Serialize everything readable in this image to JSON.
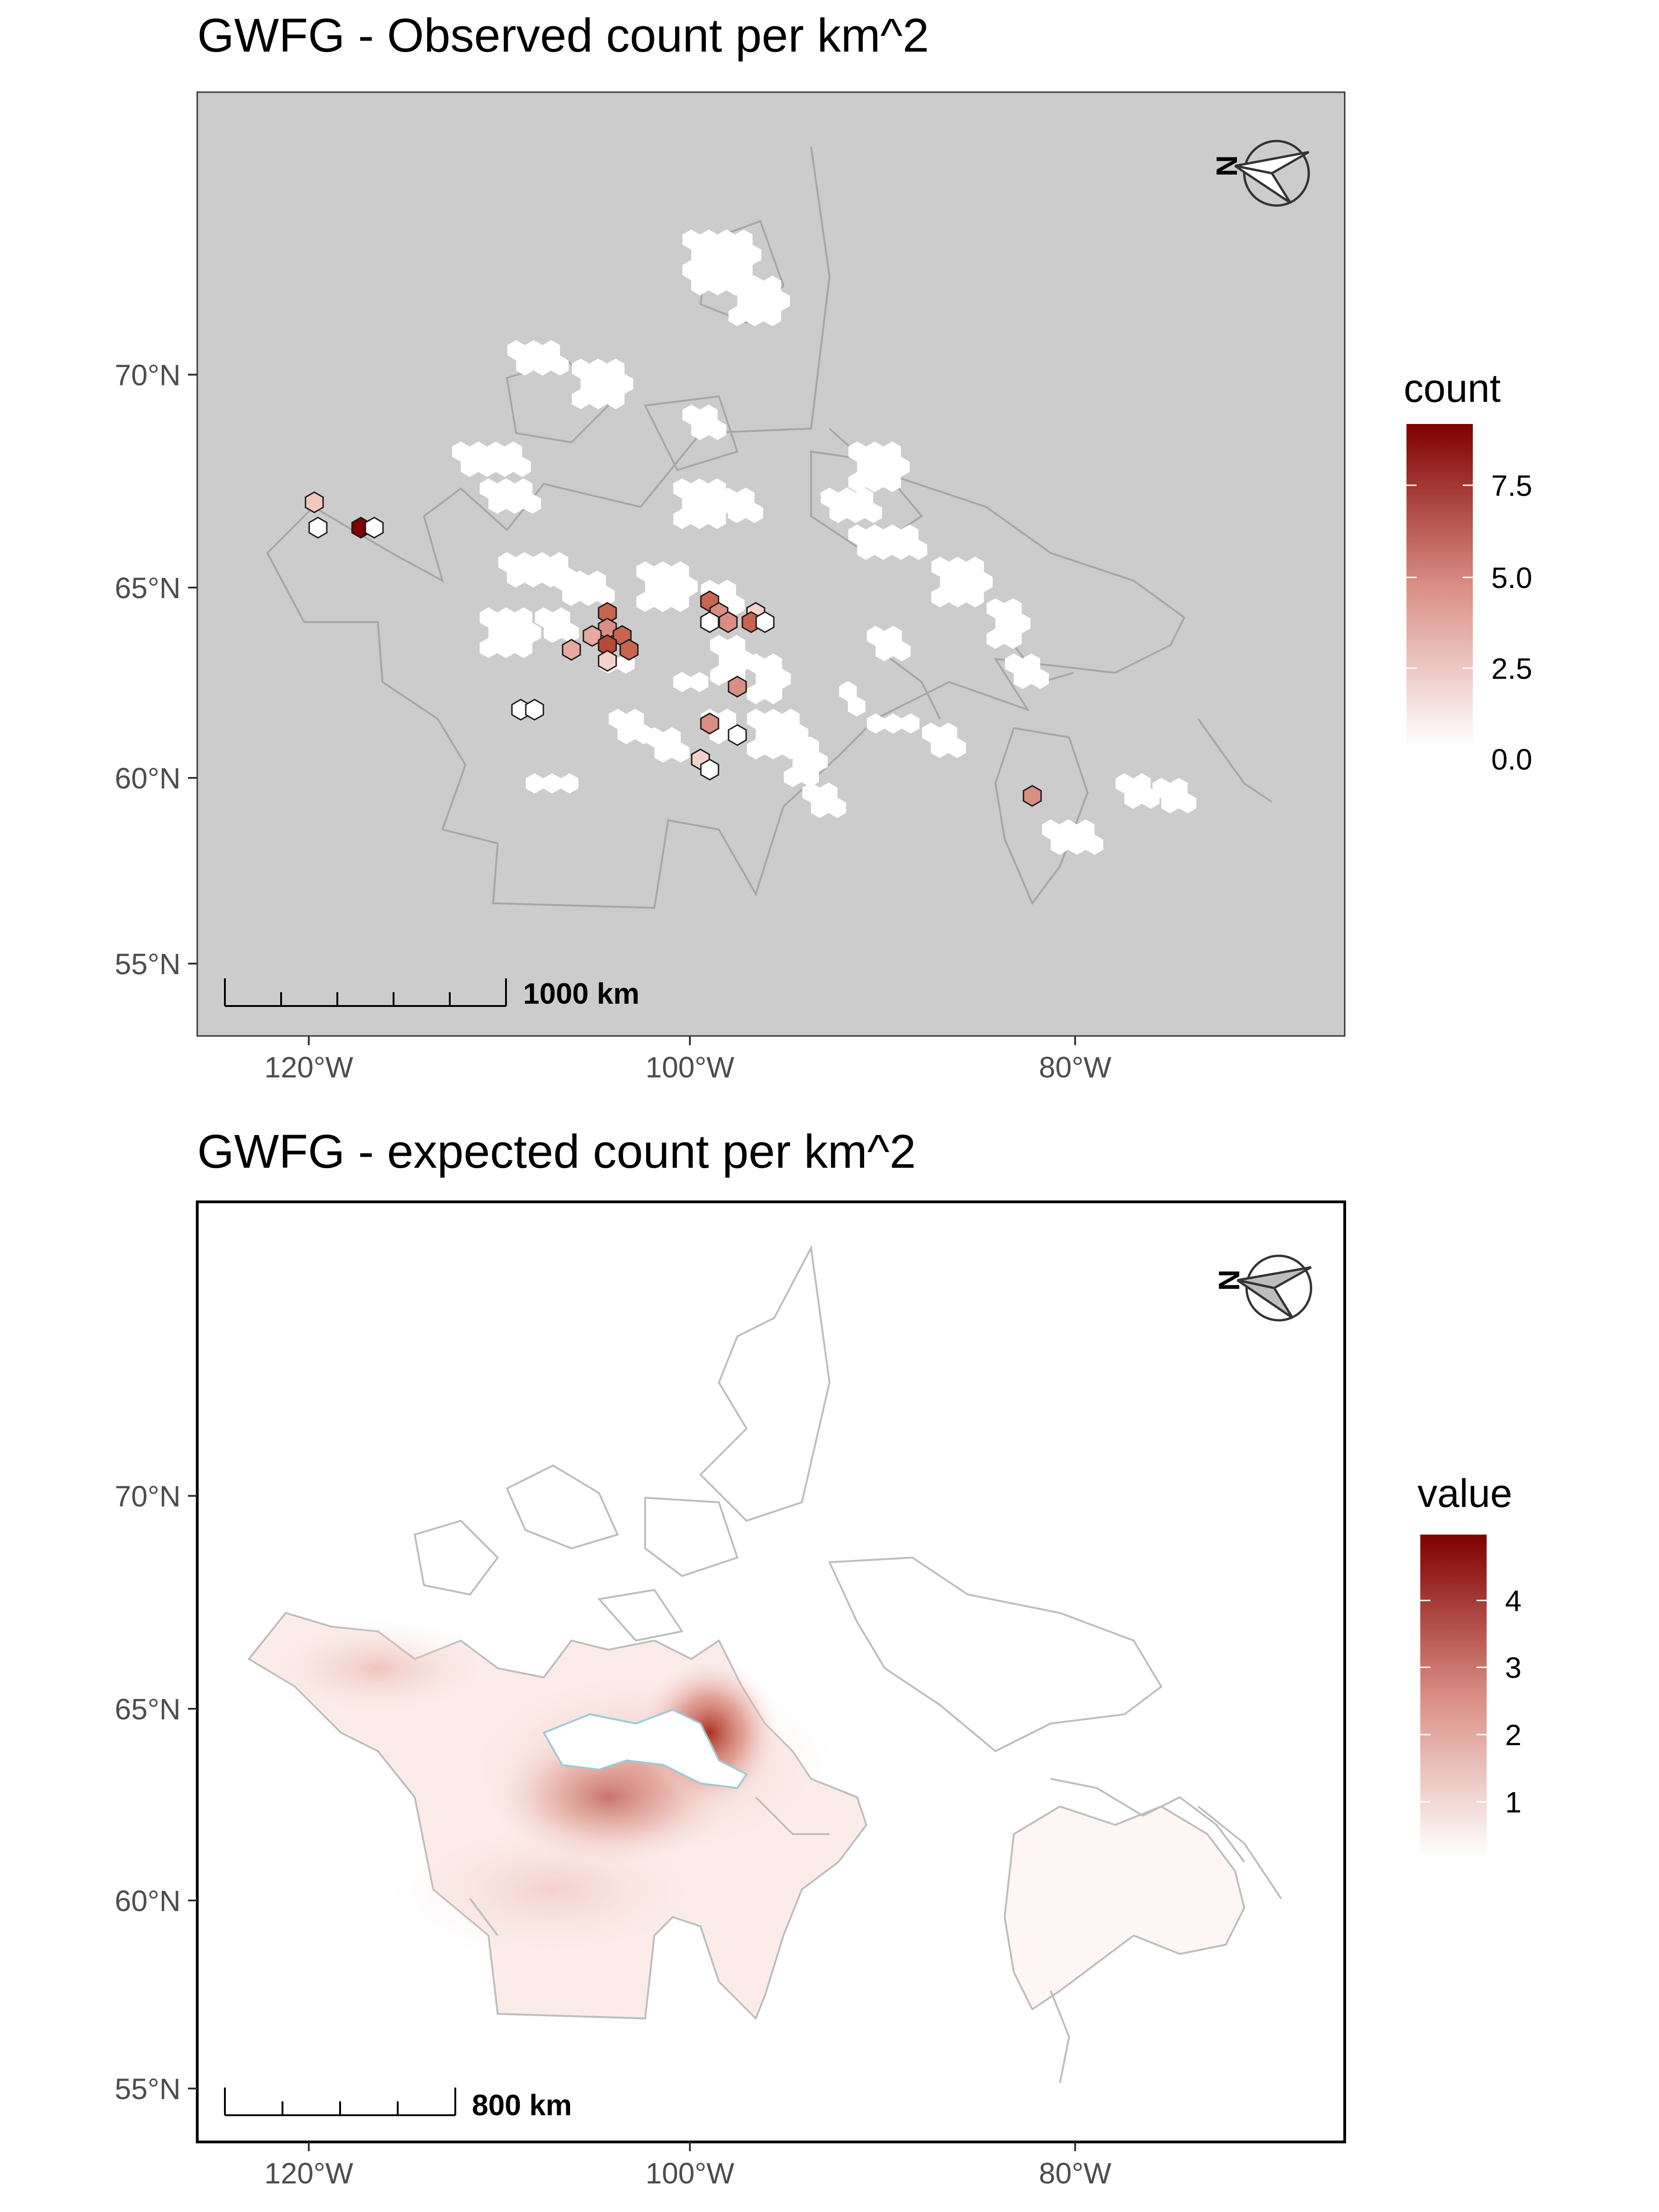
{
  "panel1": {
    "title": "GWFG - Observed count per km^2",
    "y_ticks": [
      "70°N",
      "65°N",
      "60°N",
      "55°N"
    ],
    "x_ticks": [
      "120°W",
      "100°W",
      "80°W"
    ],
    "legend_title": "count",
    "legend_labels": [
      "7.5",
      "5.0",
      "2.5",
      "0.0"
    ],
    "legend_range": [
      0,
      9.3
    ],
    "scale_label": "1000 km",
    "north_label": "N",
    "background_color": "#cccccc",
    "color_low": "#ffffff",
    "color_high": "#7f0000"
  },
  "panel2": {
    "title": "GWFG - expected count per km^2",
    "y_ticks": [
      "70°N",
      "65°N",
      "60°N",
      "55°N"
    ],
    "x_ticks": [
      "120°W",
      "100°W",
      "80°W"
    ],
    "legend_title": "value",
    "legend_labels": [
      "4",
      "3",
      "2",
      "1"
    ],
    "legend_range": [
      0,
      5
    ],
    "scale_label": "800 km",
    "north_label": "N",
    "background_color": "#ffffff",
    "color_low": "#ffffff",
    "color_high": "#7f0000"
  }
}
